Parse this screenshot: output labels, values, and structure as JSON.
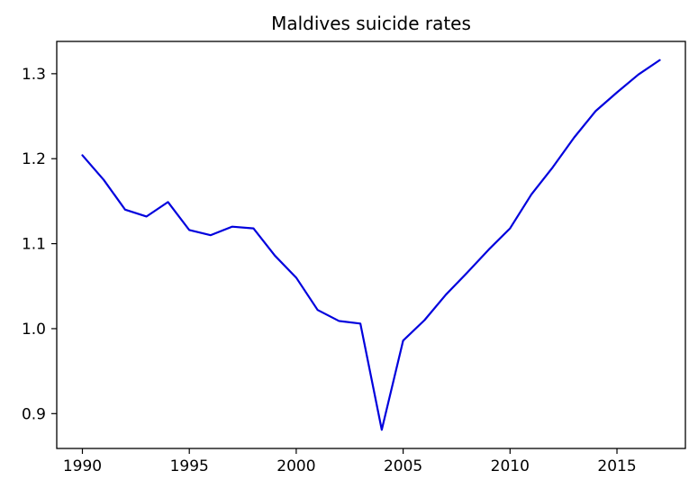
{
  "chart_data": {
    "type": "line",
    "title": "Maldives suicide rates",
    "xlabel": "",
    "ylabel": "",
    "xlim": [
      1988.8,
      2018.2
    ],
    "ylim": [
      0.859,
      1.338
    ],
    "x_ticks": [
      1990,
      1995,
      2000,
      2005,
      2010,
      2015
    ],
    "y_ticks": [
      0.9,
      1.0,
      1.1,
      1.2,
      1.3
    ],
    "y_tick_labels": [
      "0.9",
      "1.0",
      "1.1",
      "1.2",
      "1.3"
    ],
    "grid": false,
    "legend": "none",
    "series": [
      {
        "color": "#0000dd",
        "x": [
          1990,
          1991,
          1992,
          1993,
          1994,
          1995,
          1996,
          1997,
          1998,
          1999,
          2000,
          2001,
          2002,
          2003,
          2004,
          2005,
          2006,
          2007,
          2008,
          2009,
          2010,
          2011,
          2012,
          2013,
          2014,
          2015,
          2016,
          2017
        ],
        "y": [
          1.204,
          1.175,
          1.14,
          1.132,
          1.149,
          1.116,
          1.11,
          1.12,
          1.118,
          1.086,
          1.06,
          1.022,
          1.009,
          1.006,
          0.881,
          0.986,
          1.01,
          1.04,
          1.066,
          1.093,
          1.118,
          1.158,
          1.19,
          1.225,
          1.256,
          1.278,
          1.299,
          1.316
        ]
      }
    ]
  }
}
